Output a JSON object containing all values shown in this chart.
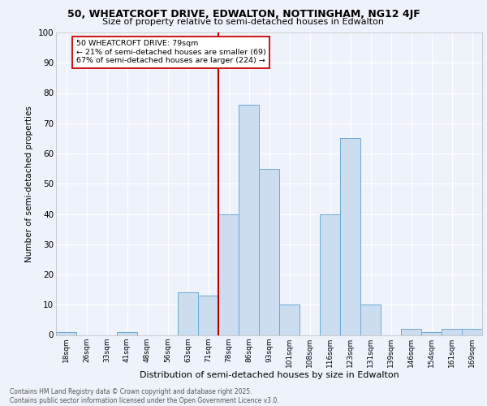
{
  "title1": "50, WHEATCROFT DRIVE, EDWALTON, NOTTINGHAM, NG12 4JF",
  "title2": "Size of property relative to semi-detached houses in Edwalton",
  "xlabel": "Distribution of semi-detached houses by size in Edwalton",
  "ylabel": "Number of semi-detached properties",
  "categories": [
    "18sqm",
    "26sqm",
    "33sqm",
    "41sqm",
    "48sqm",
    "56sqm",
    "63sqm",
    "71sqm",
    "78sqm",
    "86sqm",
    "93sqm",
    "101sqm",
    "108sqm",
    "116sqm",
    "123sqm",
    "131sqm",
    "139sqm",
    "146sqm",
    "154sqm",
    "161sqm",
    "169sqm"
  ],
  "values": [
    1,
    0,
    0,
    1,
    0,
    0,
    14,
    13,
    40,
    76,
    55,
    10,
    0,
    40,
    65,
    10,
    0,
    2,
    1,
    2,
    2
  ],
  "bar_color": "#ccddf0",
  "bar_edge_color": "#6aaad4",
  "ref_line_index": 8,
  "ref_line_color": "#bb0000",
  "annotation_title": "50 WHEATCROFT DRIVE: 79sqm",
  "annotation_line1": "← 21% of semi-detached houses are smaller (69)",
  "annotation_line2": "67% of semi-detached houses are larger (224) →",
  "annotation_box_edge": "#cc0000",
  "ylim": [
    0,
    100
  ],
  "yticks": [
    0,
    10,
    20,
    30,
    40,
    50,
    60,
    70,
    80,
    90,
    100
  ],
  "footer1": "Contains HM Land Registry data © Crown copyright and database right 2025.",
  "footer2": "Contains public sector information licensed under the Open Government Licence v3.0.",
  "bg_color": "#eef2fa",
  "plot_bg_color": "#eef2fa",
  "grid_color": "#ffffff"
}
